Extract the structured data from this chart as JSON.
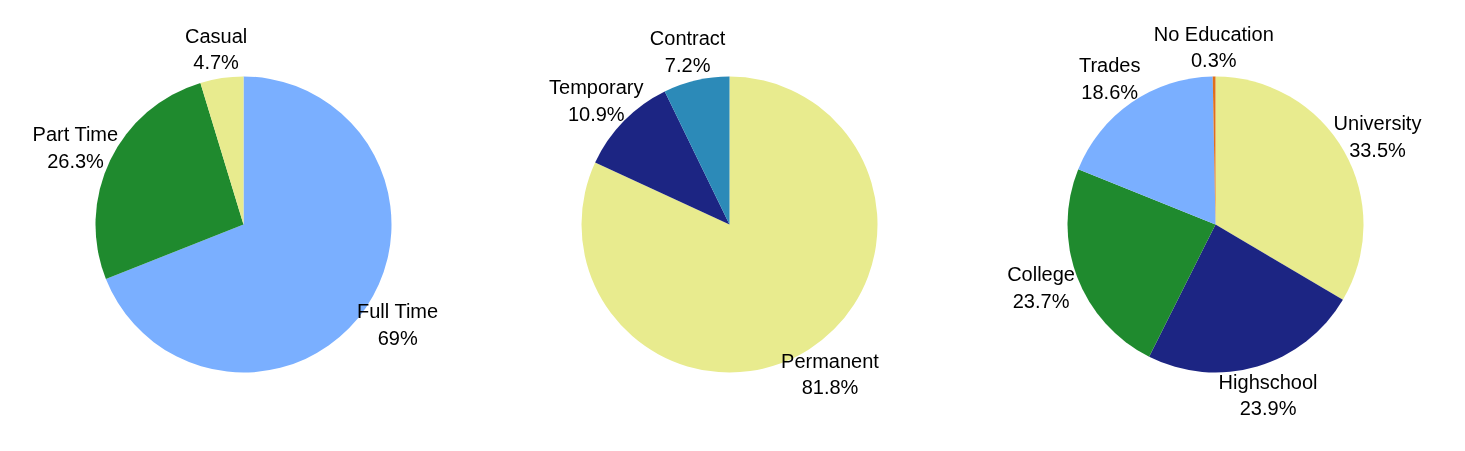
{
  "chart_data": [
    {
      "type": "pie",
      "categories": [
        "Full Time",
        "Part Time",
        "Casual"
      ],
      "values": [
        69,
        26.3,
        4.7
      ],
      "colors": [
        "#7aafff",
        "#1f8a2e",
        "#e8eb8e"
      ],
      "value_labels": [
        "69%",
        "26.3%",
        "4.7%"
      ]
    },
    {
      "type": "pie",
      "categories": [
        "Permanent",
        "Temporary",
        "Contract"
      ],
      "values": [
        81.8,
        10.9,
        7.2
      ],
      "colors": [
        "#e8eb8e",
        "#1c2583",
        "#2c8ab8"
      ],
      "value_labels": [
        "81.8%",
        "10.9%",
        "7.2%"
      ]
    },
    {
      "type": "pie",
      "categories": [
        "University",
        "Highschool",
        "College",
        "Trades",
        "No Education"
      ],
      "values": [
        33.5,
        23.9,
        23.7,
        18.6,
        0.3
      ],
      "colors": [
        "#e8eb8e",
        "#1c2583",
        "#1f8a2e",
        "#7aafff",
        "#e0701b"
      ],
      "value_labels": [
        "33.5%",
        "23.9%",
        "23.7%",
        "18.6%",
        "0.3%"
      ]
    }
  ]
}
